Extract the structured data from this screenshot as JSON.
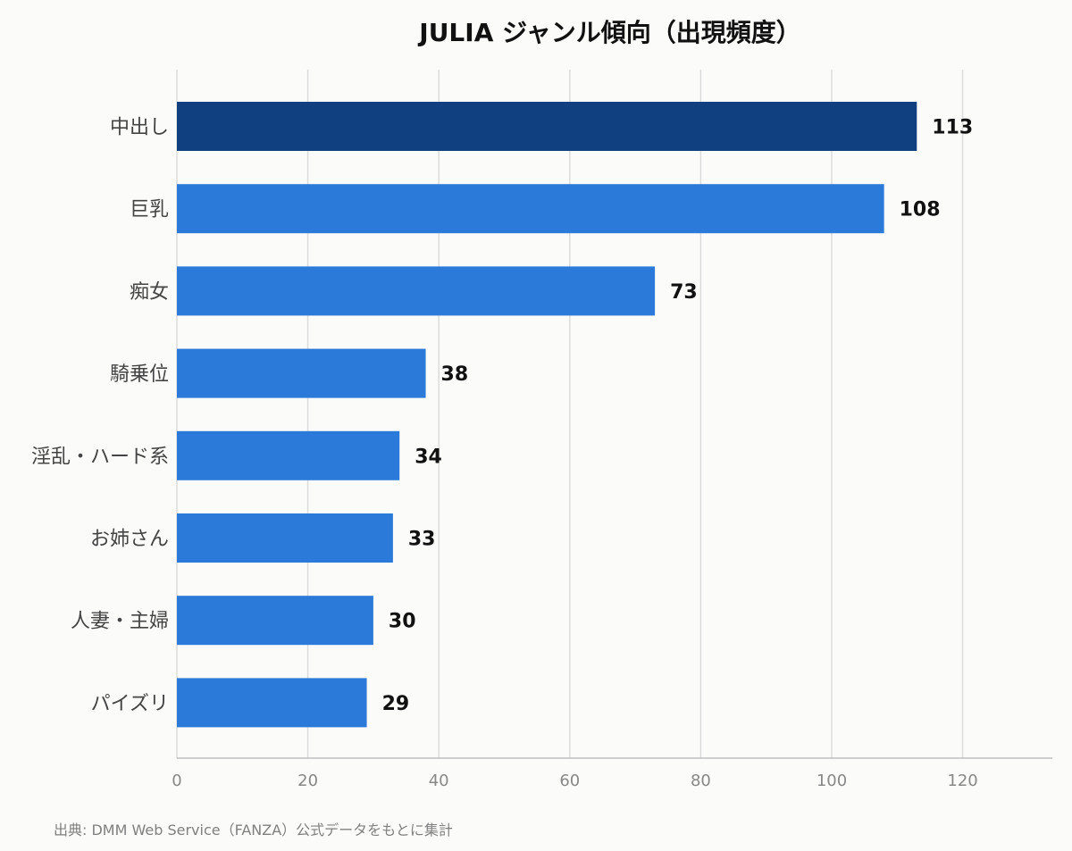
{
  "chart_data": {
    "type": "bar",
    "orientation": "horizontal",
    "title": "JULIA ジャンル傾向（出現頻度）",
    "categories": [
      "中出し",
      "巨乳",
      "痴女",
      "騎乗位",
      "淫乱・ハード系",
      "お姉さん",
      "人妻・主婦",
      "パイズリ"
    ],
    "values": [
      113,
      108,
      73,
      38,
      34,
      33,
      30,
      29
    ],
    "xlim": [
      0,
      134
    ],
    "xticks": [
      0,
      20,
      40,
      60,
      80,
      100,
      120
    ],
    "grid": "vertical",
    "bar_colors": [
      "#10407f",
      "#2b79d8",
      "#2b79d8",
      "#2b79d8",
      "#2b79d8",
      "#2b79d8",
      "#2b79d8",
      "#2b79d8"
    ],
    "note": "出典: DMM Web Service（FANZA）公式データをもとに集計"
  },
  "colors": {
    "background": "#fbfbf9",
    "highlight_bar": "#10407f",
    "bar": "#2b79d8",
    "grid": "#dcdcdc",
    "axis": "#bfbfbf"
  }
}
